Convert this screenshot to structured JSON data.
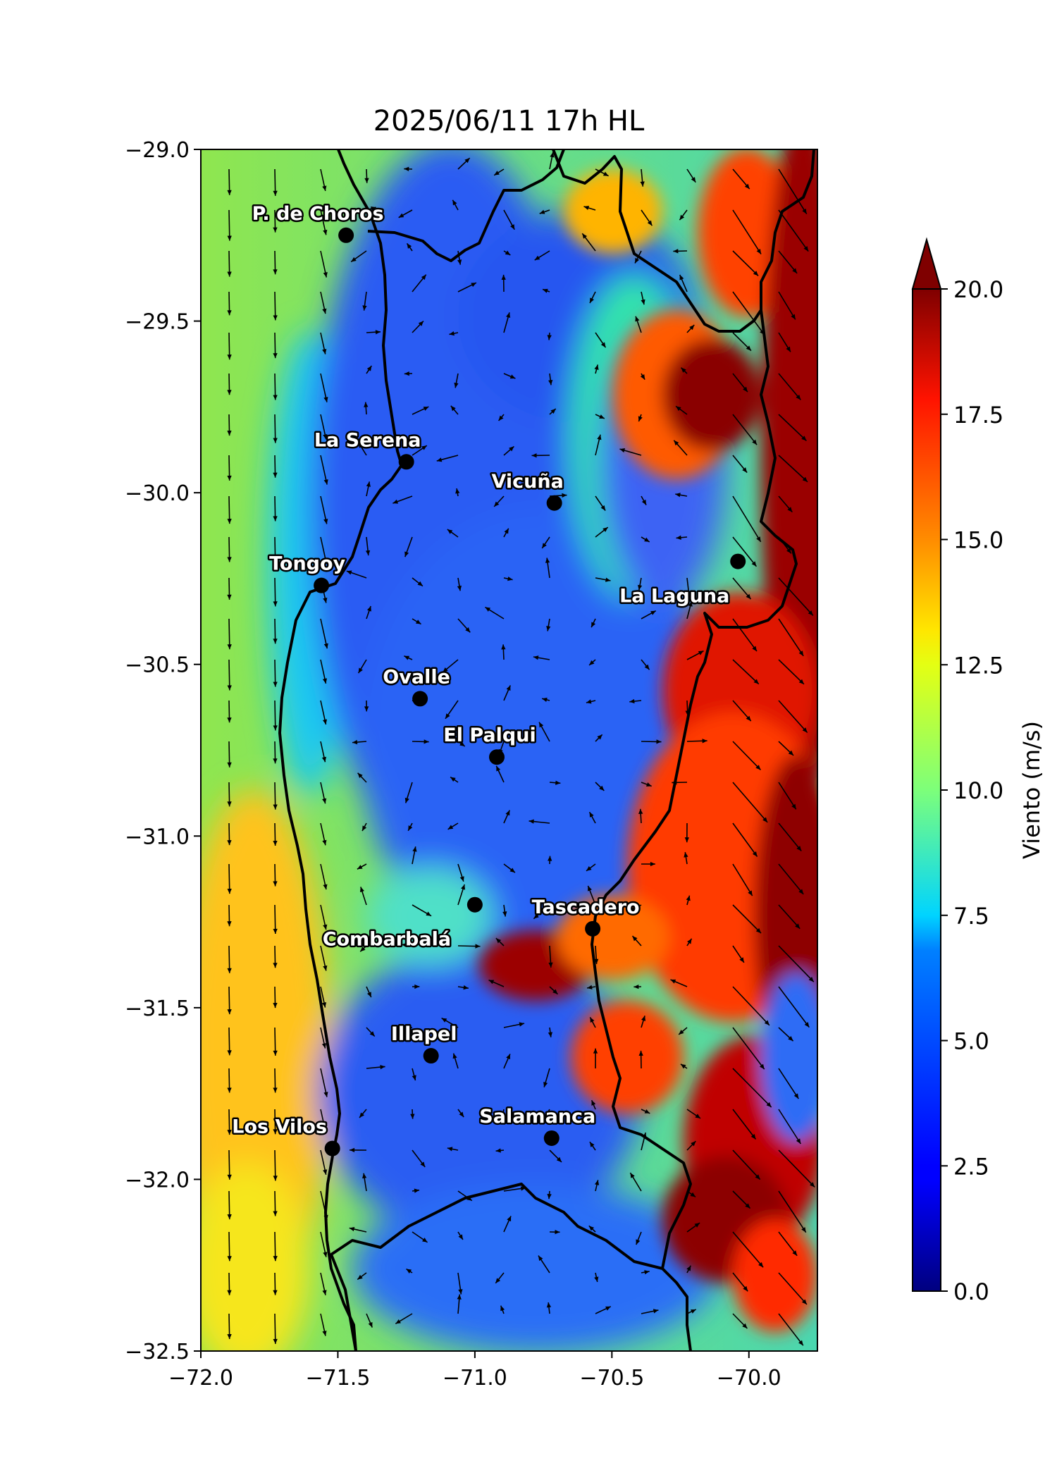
{
  "title": "2025/06/11 17h HL",
  "map": {
    "xlim": [
      -72.0,
      -69.75
    ],
    "ylim": [
      -32.5,
      -29.0
    ],
    "x_ticks": [
      -72.0,
      -71.5,
      -71.0,
      -70.5,
      -70.0
    ],
    "x_tick_labels": [
      "−72.0",
      "−71.5",
      "−71.0",
      "−70.5",
      "−70.0"
    ],
    "y_ticks": [
      -29.0,
      -29.5,
      -30.0,
      -30.5,
      -31.0,
      -31.5,
      -32.0,
      -32.5
    ],
    "y_tick_labels": [
      "−29.0",
      "−29.5",
      "−30.0",
      "−30.5",
      "−31.0",
      "−31.5",
      "−32.0",
      "−32.5"
    ],
    "wind_speed_regions": [
      {
        "zone": "ocean near coast",
        "speed_ms": 10.5
      },
      {
        "zone": "ocean south-west",
        "speed_ms": 14.5
      },
      {
        "zone": "coastal valleys",
        "speed_ms": 4.5
      },
      {
        "zone": "Andes foothills",
        "speed_ms": 16.5
      },
      {
        "zone": "high Andes east",
        "speed_ms": 20.0
      }
    ]
  },
  "cities": [
    {
      "name": "P. de Choros",
      "lon": -71.47,
      "lat": -29.25
    },
    {
      "name": "La Serena",
      "lon": -71.25,
      "lat": -29.91
    },
    {
      "name": "Vicuña",
      "lon": -70.71,
      "lat": -30.03
    },
    {
      "name": "La Laguna",
      "lon": -70.04,
      "lat": -30.2
    },
    {
      "name": "Tongoy",
      "lon": -71.56,
      "lat": -30.27
    },
    {
      "name": "Ovalle",
      "lon": -71.2,
      "lat": -30.6
    },
    {
      "name": "El Palqui",
      "lon": -70.92,
      "lat": -30.77
    },
    {
      "name": "Combarbalá",
      "lon": -71.0,
      "lat": -31.2
    },
    {
      "name": "Tascadero",
      "lon": -70.57,
      "lat": -31.27
    },
    {
      "name": "Illapel",
      "lon": -71.16,
      "lat": -31.64
    },
    {
      "name": "Los Vilos",
      "lon": -71.52,
      "lat": -31.91
    },
    {
      "name": "Salamanca",
      "lon": -70.72,
      "lat": -31.88
    }
  ],
  "colorbar": {
    "label": "Viento (m/s)",
    "min": 0.0,
    "max": 20.0,
    "extend": "max",
    "colormap": "jet",
    "ticks": [
      0.0,
      2.5,
      5.0,
      7.5,
      10.0,
      12.5,
      15.0,
      17.5,
      20.0
    ],
    "tick_labels": [
      "0.0",
      "2.5",
      "5.0",
      "7.5",
      "10.0",
      "12.5",
      "15.0",
      "17.5",
      "20.0"
    ]
  }
}
